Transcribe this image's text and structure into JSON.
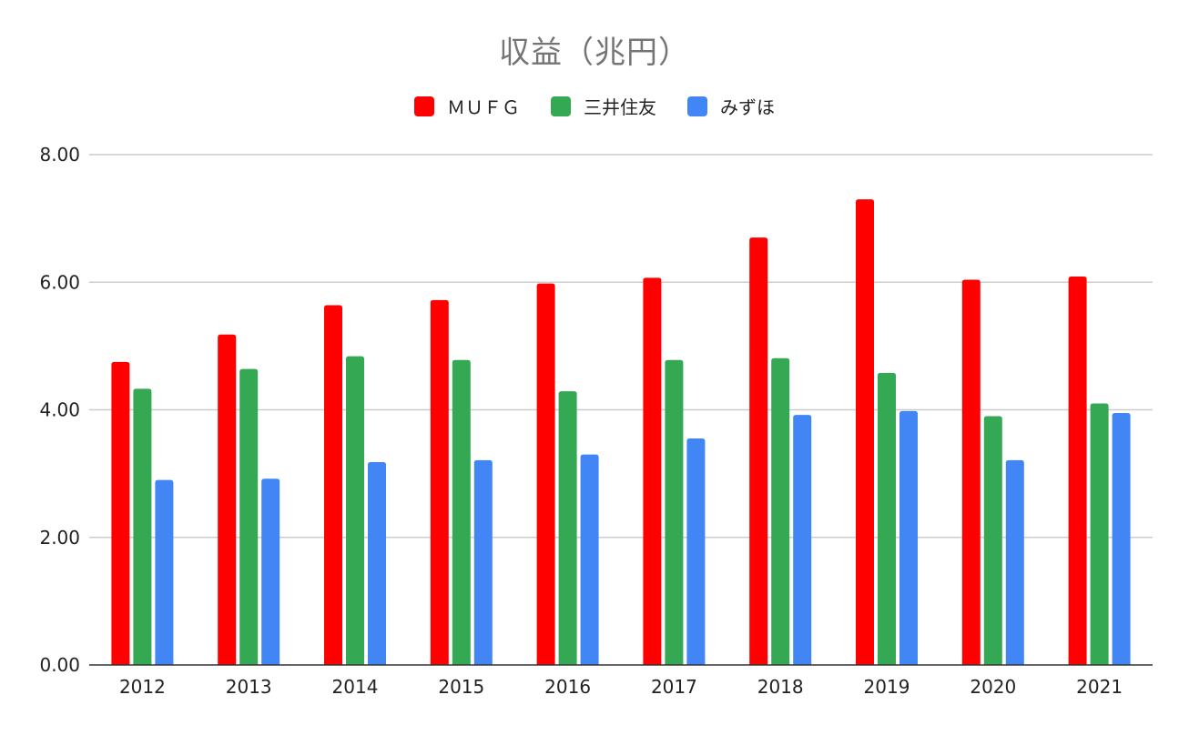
{
  "chart_data": {
    "type": "bar",
    "title": "収益（兆円）",
    "xlabel": "",
    "ylabel": "",
    "ylim": [
      0,
      8
    ],
    "yticks": [
      "0.00",
      "2.00",
      "4.00",
      "6.00",
      "8.00"
    ],
    "grid": true,
    "legend_position": "top-center",
    "categories": [
      "2012",
      "2013",
      "2014",
      "2015",
      "2016",
      "2017",
      "2018",
      "2019",
      "2020",
      "2021"
    ],
    "series": [
      {
        "name": "ＭＵＦＧ",
        "color": "#ff0000",
        "values": [
          4.75,
          5.18,
          5.64,
          5.72,
          5.98,
          6.07,
          6.7,
          7.3,
          6.04,
          6.09
        ]
      },
      {
        "name": "三井住友",
        "color": "#34a853",
        "values": [
          4.33,
          4.64,
          4.84,
          4.78,
          4.29,
          4.78,
          4.81,
          4.58,
          3.9,
          4.1
        ]
      },
      {
        "name": "みずほ",
        "color": "#4285f4",
        "values": [
          2.9,
          2.92,
          3.18,
          3.21,
          3.3,
          3.55,
          3.92,
          3.98,
          3.21,
          3.95
        ]
      }
    ]
  }
}
